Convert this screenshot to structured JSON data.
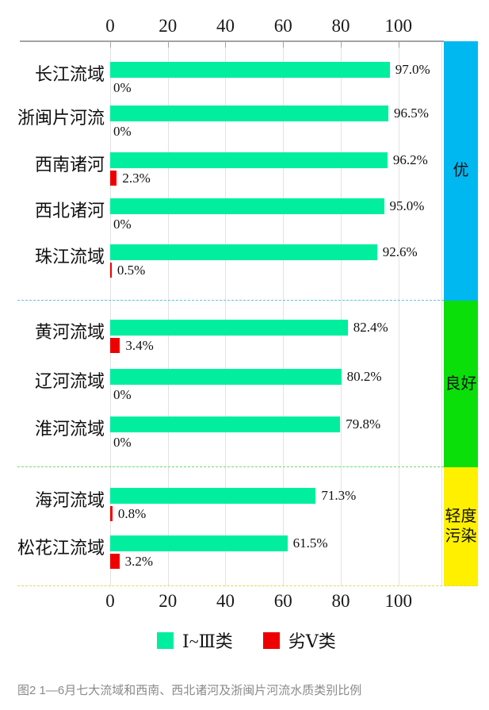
{
  "figure": {
    "caption": "图2  1—6月七大流域和西南、西北诸河及浙闽片河流水质类别比例"
  },
  "chart_data": {
    "type": "bar",
    "orientation": "horizontal",
    "unit": "%",
    "title": "",
    "xlabel": "",
    "ylabel": "",
    "xlim": [
      0,
      115
    ],
    "x_ticks": [
      0,
      20,
      40,
      60,
      80,
      100
    ],
    "axis_tick_sides": [
      "top",
      "bottom"
    ],
    "grid": true,
    "legend_position": "bottom",
    "legend": [
      {
        "name": "class-1-to-3",
        "label": "Ⅰ~Ⅲ类",
        "color": "#00EE9E"
      },
      {
        "name": "inferior-5",
        "label": "劣Ⅴ类",
        "color": "#EE0000"
      }
    ],
    "categories": [
      "长江流域",
      "浙闽片河流",
      "西南诸河",
      "西北诸河",
      "珠江流域",
      "黄河流域",
      "辽河流域",
      "淮河流域",
      "海河流域",
      "松花江流域"
    ],
    "series": [
      {
        "name": "Ⅰ~Ⅲ类",
        "color": "#00EE9E",
        "values": [
          97.0,
          96.5,
          96.2,
          95.0,
          92.6,
          82.4,
          80.2,
          79.8,
          71.3,
          61.5
        ]
      },
      {
        "name": "劣Ⅴ类",
        "color": "#EE0000",
        "values": [
          0,
          0,
          2.3,
          0,
          0.5,
          3.4,
          0,
          0,
          0.8,
          3.2
        ]
      }
    ],
    "rows": [
      {
        "name": "长江流域",
        "class_1_3_label": "97.0%",
        "inferior_5_label": "0%",
        "grade": "优"
      },
      {
        "name": "浙闽片河流",
        "class_1_3_label": "96.5%",
        "inferior_5_label": "0%",
        "grade": "优"
      },
      {
        "name": "西南诸河",
        "class_1_3_label": "96.2%",
        "inferior_5_label": "2.3%",
        "grade": "优"
      },
      {
        "name": "西北诸河",
        "class_1_3_label": "95.0%",
        "inferior_5_label": "0%",
        "grade": "优"
      },
      {
        "name": "珠江流域",
        "class_1_3_label": "92.6%",
        "inferior_5_label": "0.5%",
        "grade": "优"
      },
      {
        "name": "黄河流域",
        "class_1_3_label": "82.4%",
        "inferior_5_label": "3.4%",
        "grade": "良好"
      },
      {
        "name": "辽河流域",
        "class_1_3_label": "80.2%",
        "inferior_5_label": "0%",
        "grade": "良好"
      },
      {
        "name": "淮河流域",
        "class_1_3_label": "79.8%",
        "inferior_5_label": "0%",
        "grade": "良好"
      },
      {
        "name": "海河流域",
        "class_1_3_label": "71.3%",
        "inferior_5_label": "0.8%",
        "grade": "轻度污染"
      },
      {
        "name": "松花江流域",
        "class_1_3_label": "61.5%",
        "inferior_5_label": "3.2%",
        "grade": "轻度污染"
      }
    ],
    "grade_bands": [
      {
        "label": "优",
        "color": "#00B8F0",
        "divider_color": "#5BC6F0",
        "row_count": 5
      },
      {
        "label": "良好",
        "color": "#0ADF0A",
        "divider_color": "#6FDE6F",
        "row_count": 3
      },
      {
        "label": "轻度污染",
        "color": "#FFF000",
        "divider_color": "#E3D95C",
        "row_count": 2
      }
    ]
  }
}
